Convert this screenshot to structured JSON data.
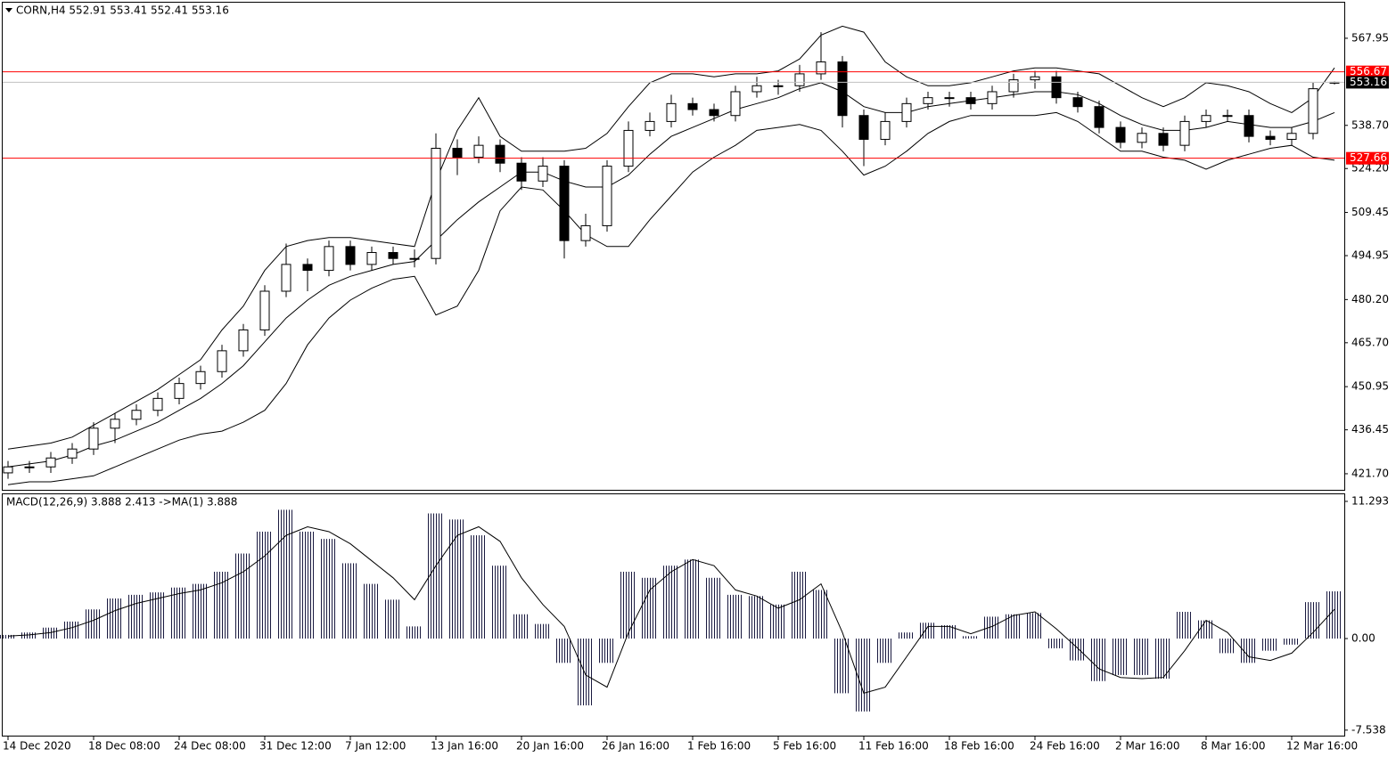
{
  "chart_data": [
    {
      "type": "candlestick",
      "title": "CORN,H4  552.91 553.41 552.41 553.16",
      "categories": [
        "14 Dec 2020",
        null,
        null,
        null,
        "18 Dec 08:00",
        null,
        null,
        null,
        "24 Dec 08:00",
        null,
        null,
        null,
        "31 Dec 12:00",
        null,
        null,
        null,
        "7 Jan 12:00",
        null,
        null,
        null,
        "13 Jan 16:00",
        null,
        null,
        null,
        "20 Jan 16:00",
        null,
        null,
        null,
        "26 Jan 16:00",
        null,
        null,
        null,
        "1 Feb 16:00",
        null,
        null,
        null,
        "5 Feb 16:00",
        null,
        null,
        null,
        "11 Feb 16:00",
        null,
        null,
        null,
        "18 Feb 16:00",
        null,
        null,
        null,
        "24 Feb 16:00",
        null,
        null,
        null,
        "2 Mar 16:00",
        null,
        null,
        null,
        "8 Mar 16:00",
        null,
        null,
        null,
        "12 Mar 16:00",
        null,
        null
      ],
      "open": [
        422,
        424,
        424,
        427,
        430,
        437,
        440,
        443,
        447,
        452,
        456,
        463,
        470,
        483,
        492,
        490,
        498,
        492,
        496,
        494,
        494,
        531,
        528,
        532,
        526,
        520,
        525,
        500,
        505,
        525,
        537,
        540,
        546,
        544,
        542,
        550,
        552,
        552,
        556,
        560,
        542,
        534,
        540,
        546,
        548,
        548,
        546,
        550,
        554,
        555,
        548,
        545,
        538,
        533,
        536,
        532,
        540,
        542,
        542,
        535,
        534,
        536,
        552.91
      ],
      "high": [
        426,
        426,
        429,
        432,
        439,
        442,
        445,
        449,
        454,
        458,
        465,
        472,
        485,
        499,
        494,
        500,
        500,
        498,
        498,
        497,
        536,
        534,
        535,
        534,
        528,
        528,
        527,
        509,
        527,
        540,
        543,
        549,
        548,
        546,
        552,
        555,
        554,
        559,
        570,
        562,
        544,
        543,
        548,
        550,
        550,
        550,
        552,
        556,
        557,
        557,
        550,
        547,
        540,
        538,
        538,
        542,
        544,
        544,
        544,
        537,
        538,
        553,
        553.41
      ],
      "low": [
        420,
        422,
        422,
        425,
        428,
        432,
        438,
        441,
        445,
        450,
        454,
        461,
        468,
        481,
        483,
        488,
        490,
        490,
        492,
        491,
        492,
        522,
        526,
        523,
        517,
        518,
        494,
        498,
        503,
        523,
        535,
        538,
        542,
        540,
        540,
        548,
        549,
        550,
        554,
        538,
        525,
        532,
        538,
        544,
        545,
        544,
        544,
        548,
        551,
        546,
        543,
        536,
        531,
        531,
        530,
        530,
        538,
        540,
        533,
        532,
        532,
        534,
        552.41
      ],
      "close": [
        424,
        424,
        427,
        430,
        437,
        440,
        443,
        447,
        452,
        456,
        463,
        470,
        483,
        492,
        490,
        498,
        492,
        496,
        494,
        494,
        531,
        528,
        532,
        526,
        520,
        525,
        500,
        505,
        525,
        537,
        540,
        546,
        544,
        542,
        550,
        552,
        552,
        556,
        560,
        542,
        534,
        540,
        546,
        548,
        548,
        546,
        550,
        554,
        555,
        548,
        545,
        538,
        533,
        536,
        532,
        540,
        542,
        542,
        535,
        534,
        536,
        551,
        553.16
      ],
      "series": [
        {
          "color": "#000000",
          "values": [
            430,
            431,
            432,
            434,
            438,
            442,
            446,
            450,
            455,
            460,
            470,
            478,
            490,
            498,
            500,
            501,
            501,
            500,
            499,
            498,
            520,
            537,
            548,
            535,
            530,
            530,
            530,
            531,
            536,
            545,
            553,
            556,
            556,
            555,
            556,
            556,
            557,
            561,
            569,
            572,
            570,
            560,
            555,
            552,
            552,
            553,
            555,
            557,
            558,
            558,
            557,
            556,
            552,
            548,
            545,
            548,
            553,
            552,
            550,
            546,
            543,
            548,
            558
          ]
        },
        {
          "color": "#000000",
          "values": [
            424,
            425,
            426,
            428,
            431,
            433,
            436,
            439,
            443,
            447,
            452,
            458,
            466,
            474,
            480,
            485,
            488,
            490,
            492,
            493,
            500,
            507,
            513,
            518,
            523,
            523,
            520,
            518,
            518,
            522,
            529,
            535,
            538,
            541,
            544,
            546,
            548,
            551,
            553,
            550,
            545,
            543,
            543,
            545,
            546,
            547,
            548,
            549,
            550,
            550,
            549,
            546,
            542,
            539,
            537,
            537,
            538,
            540,
            539,
            538,
            538,
            540,
            543
          ]
        },
        {
          "color": "#000000",
          "values": [
            418,
            419,
            419,
            420,
            421,
            424,
            427,
            430,
            433,
            435,
            436,
            439,
            443,
            452,
            465,
            474,
            480,
            484,
            487,
            488,
            475,
            478,
            490,
            510,
            518,
            517,
            510,
            502,
            498,
            498,
            507,
            515,
            523,
            528,
            532,
            537,
            538,
            539,
            537,
            530,
            522,
            525,
            530,
            536,
            540,
            542,
            542,
            542,
            542,
            543,
            540,
            535,
            530,
            530,
            528,
            527,
            524,
            527,
            529,
            531,
            532,
            528,
            527
          ]
        }
      ],
      "levels": [
        {
          "value": 556.67,
          "color": "#ff0000",
          "box": "#ff0000"
        },
        {
          "value": 553.16,
          "color": "#c0c0c0",
          "box": "#000000"
        },
        {
          "value": 527.66,
          "color": "#ff0000",
          "box": "#ff0000"
        }
      ],
      "ylim": [
        416.3,
        580.2
      ],
      "yticks": [
        567.95,
        {
          "value": 538.7,
          "label": "538.70"
        },
        {
          "value": 524.2,
          "label": "524.20"
        },
        509.45,
        494.95,
        {
          "value": 480.2,
          "label": "480.20"
        },
        {
          "value": 465.7,
          "label": "465.70"
        },
        450.95,
        436.45,
        {
          "value": 421.7,
          "label": "421.70"
        }
      ]
    },
    {
      "type": "macd",
      "title": "MACD(12,26,9) 3.888 2.413  ->MA(1) 3.888",
      "values": [
        0.3,
        0.5,
        0.9,
        1.4,
        2.4,
        3.3,
        3.6,
        3.8,
        4.2,
        4.5,
        5.5,
        7.0,
        8.8,
        10.6,
        8.8,
        8.2,
        6.2,
        4.5,
        3.2,
        1.0,
        10.3,
        9.8,
        8.5,
        6.0,
        2.0,
        1.2,
        -2.0,
        -5.5,
        -2.0,
        5.5,
        5.0,
        6.0,
        6.5,
        5.0,
        3.6,
        3.5,
        2.8,
        5.5,
        4.0,
        -4.5,
        -6.0,
        -2.0,
        0.5,
        1.3,
        1.1,
        0.2,
        1.8,
        2.0,
        2.1,
        -0.8,
        -1.8,
        -3.5,
        -3.0,
        -3.0,
        -3.3,
        2.2,
        1.5,
        -1.2,
        -2.0,
        -1.0,
        -0.5,
        3.0,
        3.888
      ],
      "series": [
        {
          "color": "#000000",
          "values": [
            0.2,
            0.3,
            0.5,
            0.9,
            1.5,
            2.3,
            2.9,
            3.3,
            3.7,
            4.0,
            4.6,
            5.5,
            6.8,
            8.5,
            9.2,
            8.8,
            7.8,
            6.4,
            5.0,
            3.2,
            6.0,
            8.5,
            9.2,
            8.0,
            5.0,
            2.8,
            1.0,
            -3.0,
            -4.0,
            0.5,
            4.0,
            5.5,
            6.5,
            6.0,
            4.0,
            3.5,
            2.5,
            3.2,
            4.5,
            0.5,
            -4.5,
            -4.0,
            -1.5,
            1.0,
            1.0,
            0.4,
            1.0,
            1.9,
            2.2,
            0.8,
            -0.8,
            -2.5,
            -3.2,
            -3.3,
            -3.2,
            -1.0,
            1.5,
            0.5,
            -1.5,
            -1.8,
            -1.2,
            0.5,
            2.413
          ]
        }
      ],
      "ylim": [
        -7.99,
        11.95
      ],
      "yticks": [
        11.293,
        {
          "value": 0,
          "label": "0.00"
        },
        -7.538
      ]
    }
  ]
}
